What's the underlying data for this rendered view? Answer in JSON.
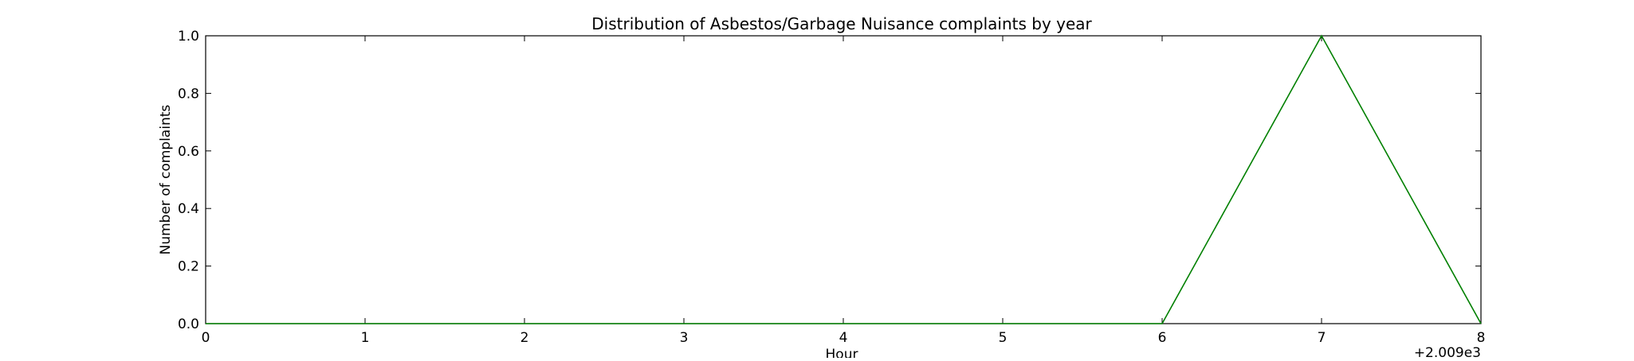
{
  "chart_data": {
    "type": "line",
    "title": "Distribution of  Asbestos/Garbage Nuisance complaints by year",
    "xlabel": "Hour",
    "ylabel": "Number of complaints",
    "x_offset_label": "+2.009e3",
    "xlim": [
      0,
      8
    ],
    "ylim": [
      0.0,
      1.0
    ],
    "x_ticks": [
      0,
      1,
      2,
      3,
      4,
      5,
      6,
      7,
      8
    ],
    "x_tick_labels": [
      "0",
      "1",
      "2",
      "3",
      "4",
      "5",
      "6",
      "7",
      "8"
    ],
    "y_ticks": [
      0.0,
      0.2,
      0.4,
      0.6,
      0.8,
      1.0
    ],
    "y_tick_labels": [
      "0.0",
      "0.2",
      "0.4",
      "0.6",
      "0.8",
      "1.0"
    ],
    "grid": false,
    "series": [
      {
        "color": "#008000",
        "x": [
          0,
          1,
          2,
          3,
          4,
          5,
          6,
          7,
          8
        ],
        "y": [
          0,
          0,
          0,
          0,
          0,
          0,
          0,
          1,
          0
        ]
      }
    ]
  }
}
